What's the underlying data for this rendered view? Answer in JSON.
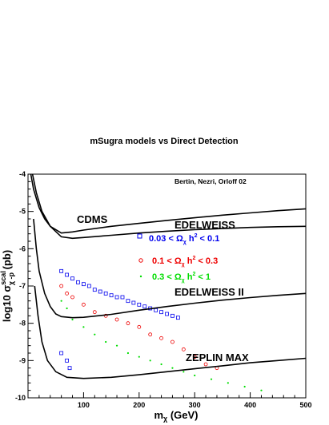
{
  "chart_data": {
    "type": "scatter",
    "title": "mSugra models vs Direct Detection",
    "annotation": "Bertin, Nezri, Orloff 02",
    "xlabel": {
      "main": "m",
      "sub": "χ",
      "rest": " (GeV)"
    },
    "ylabel": {
      "main": "log10 σ",
      "sup": "scal",
      "sub": "χ -p",
      "rest": " (pb)"
    },
    "xlim": [
      0,
      500
    ],
    "ylim": [
      -10,
      -4
    ],
    "x_ticks": [
      100,
      200,
      300,
      400,
      500
    ],
    "y_ticks": [
      -10,
      -9,
      -8,
      -7,
      -6,
      -5,
      -4
    ],
    "grid": false,
    "legend_placement": "right, inside plot",
    "series": [
      {
        "name": "0.03 < Ω",
        "legend_sub": "χ",
        "legend_tail": " h",
        "legend_sup": "2",
        "legend_end": " < 0.1",
        "color": "#0000ee",
        "marker": "square",
        "points": [
          [
            60,
            -6.6
          ],
          [
            70,
            -6.7
          ],
          [
            80,
            -6.8
          ],
          [
            90,
            -6.9
          ],
          [
            100,
            -6.95
          ],
          [
            110,
            -7.0
          ],
          [
            120,
            -7.1
          ],
          [
            130,
            -7.15
          ],
          [
            140,
            -7.2
          ],
          [
            150,
            -7.25
          ],
          [
            160,
            -7.3
          ],
          [
            170,
            -7.3
          ],
          [
            180,
            -7.4
          ],
          [
            190,
            -7.45
          ],
          [
            200,
            -7.5
          ],
          [
            210,
            -7.55
          ],
          [
            220,
            -7.6
          ],
          [
            230,
            -7.65
          ],
          [
            240,
            -7.7
          ],
          [
            250,
            -7.75
          ],
          [
            260,
            -7.8
          ],
          [
            270,
            -7.85
          ],
          [
            70,
            -9.0
          ],
          [
            60,
            -8.8
          ],
          [
            75,
            -9.2
          ]
        ]
      },
      {
        "name": "0.1 < Ω",
        "legend_sub": "χ",
        "legend_tail": " h",
        "legend_sup": "2",
        "legend_end": " < 0.3",
        "color": "#ee0000",
        "marker": "circle",
        "points": [
          [
            60,
            -7.0
          ],
          [
            70,
            -7.2
          ],
          [
            80,
            -7.3
          ],
          [
            100,
            -7.5
          ],
          [
            120,
            -7.7
          ],
          [
            140,
            -7.8
          ],
          [
            160,
            -7.9
          ],
          [
            180,
            -8.0
          ],
          [
            200,
            -8.1
          ],
          [
            220,
            -8.3
          ],
          [
            240,
            -8.4
          ],
          [
            260,
            -8.5
          ],
          [
            280,
            -8.7
          ],
          [
            300,
            -8.9
          ],
          [
            320,
            -9.1
          ],
          [
            340,
            -9.2
          ]
        ]
      },
      {
        "name": "0.3 < Ω",
        "legend_sub": "χ",
        "legend_tail": " h",
        "legend_sup": "2",
        "legend_end": " < 1",
        "color": "#00dd00",
        "marker": "dot",
        "points": [
          [
            60,
            -7.4
          ],
          [
            70,
            -7.6
          ],
          [
            80,
            -7.9
          ],
          [
            100,
            -8.1
          ],
          [
            120,
            -8.3
          ],
          [
            140,
            -8.5
          ],
          [
            160,
            -8.6
          ],
          [
            180,
            -8.8
          ],
          [
            200,
            -8.9
          ],
          [
            220,
            -9.0
          ],
          [
            240,
            -9.1
          ],
          [
            260,
            -9.2
          ],
          [
            280,
            -9.3
          ],
          [
            300,
            -9.4
          ],
          [
            330,
            -9.5
          ],
          [
            360,
            -9.6
          ],
          [
            390,
            -9.7
          ],
          [
            420,
            -9.8
          ]
        ]
      }
    ],
    "limit_curves": [
      {
        "name": "CDMS",
        "color": "#000000",
        "points": [
          [
            5,
            -4.0
          ],
          [
            10,
            -4.4
          ],
          [
            20,
            -4.9
          ],
          [
            30,
            -5.2
          ],
          [
            40,
            -5.4
          ],
          [
            60,
            -5.58
          ],
          [
            80,
            -5.55
          ],
          [
            100,
            -5.5
          ],
          [
            150,
            -5.4
          ],
          [
            200,
            -5.32
          ],
          [
            250,
            -5.24
          ],
          [
            300,
            -5.17
          ],
          [
            350,
            -5.1
          ],
          [
            400,
            -5.04
          ],
          [
            450,
            -4.98
          ],
          [
            500,
            -4.93
          ]
        ]
      },
      {
        "name": "EDELWEISS",
        "color": "#000000",
        "points": [
          [
            8,
            -4.0
          ],
          [
            15,
            -4.5
          ],
          [
            25,
            -5.0
          ],
          [
            40,
            -5.4
          ],
          [
            60,
            -5.68
          ],
          [
            80,
            -5.72
          ],
          [
            100,
            -5.7
          ],
          [
            150,
            -5.64
          ],
          [
            200,
            -5.58
          ],
          [
            250,
            -5.53
          ],
          [
            300,
            -5.49
          ],
          [
            350,
            -5.46
          ],
          [
            400,
            -5.43
          ],
          [
            450,
            -5.41
          ],
          [
            500,
            -5.4
          ]
        ]
      },
      {
        "name": "EDELWEISS II",
        "color": "#000000",
        "points": [
          [
            10,
            -5.2
          ],
          [
            15,
            -6.0
          ],
          [
            20,
            -6.6
          ],
          [
            30,
            -7.2
          ],
          [
            40,
            -7.55
          ],
          [
            50,
            -7.75
          ],
          [
            60,
            -7.82
          ],
          [
            80,
            -7.85
          ],
          [
            100,
            -7.84
          ],
          [
            150,
            -7.76
          ],
          [
            200,
            -7.65
          ],
          [
            250,
            -7.55
          ],
          [
            300,
            -7.46
          ],
          [
            350,
            -7.38
          ],
          [
            400,
            -7.31
          ],
          [
            450,
            -7.25
          ],
          [
            500,
            -7.2
          ]
        ]
      },
      {
        "name": "ZEPLIN MAX",
        "color": "#000000",
        "points": [
          [
            12,
            -7.0
          ],
          [
            18,
            -7.8
          ],
          [
            25,
            -8.5
          ],
          [
            35,
            -9.0
          ],
          [
            50,
            -9.3
          ],
          [
            70,
            -9.45
          ],
          [
            100,
            -9.48
          ],
          [
            150,
            -9.45
          ],
          [
            200,
            -9.38
          ],
          [
            250,
            -9.3
          ],
          [
            300,
            -9.22
          ],
          [
            350,
            -9.14
          ],
          [
            400,
            -9.06
          ],
          [
            450,
            -9.0
          ],
          [
            500,
            -8.94
          ]
        ]
      }
    ]
  }
}
